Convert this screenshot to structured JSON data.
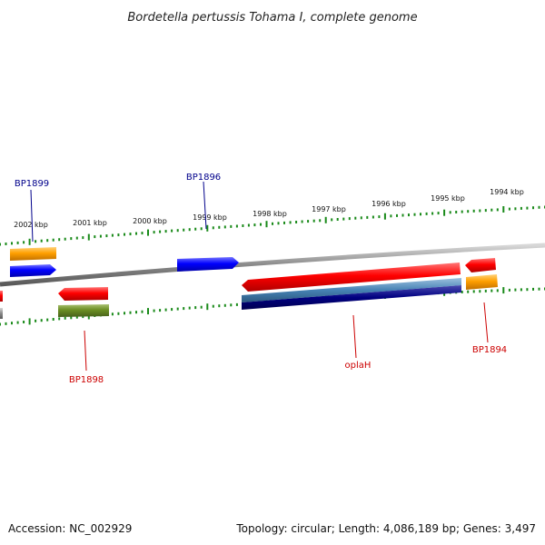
{
  "title": "Bordetella pertussis Tohama I, complete genome",
  "footer": {
    "accession": "Accession: NC_002929",
    "summary": "Topology: circular; Length: 4,086,189 bp; Genes: 3,497"
  },
  "scale_labels": [
    "2002 kbp",
    "2001 kbp",
    "2000 kbp",
    "1999 kbp",
    "1998 kbp",
    "1997 kbp",
    "1996 kbp",
    "1995 kbp",
    "1994 kbp"
  ],
  "gene_labels": [
    {
      "text": "BP1899",
      "color": "#00008b"
    },
    {
      "text": "BP1896",
      "color": "#00008b"
    },
    {
      "text": "BP1898",
      "color": "#cc0000"
    },
    {
      "text": "oplaH",
      "color": "#cc0000"
    },
    {
      "text": "BP1894",
      "color": "#cc0000"
    }
  ],
  "colors": {
    "backbone": "#8a8a8a",
    "tick": "#1a8a1a",
    "red": "#ff0000",
    "blue": "#0000ff",
    "orange": "#ffa000",
    "olive": "#6b8e23",
    "steelblue": "#4682b4",
    "navy": "#000080",
    "gray": "#808080"
  }
}
